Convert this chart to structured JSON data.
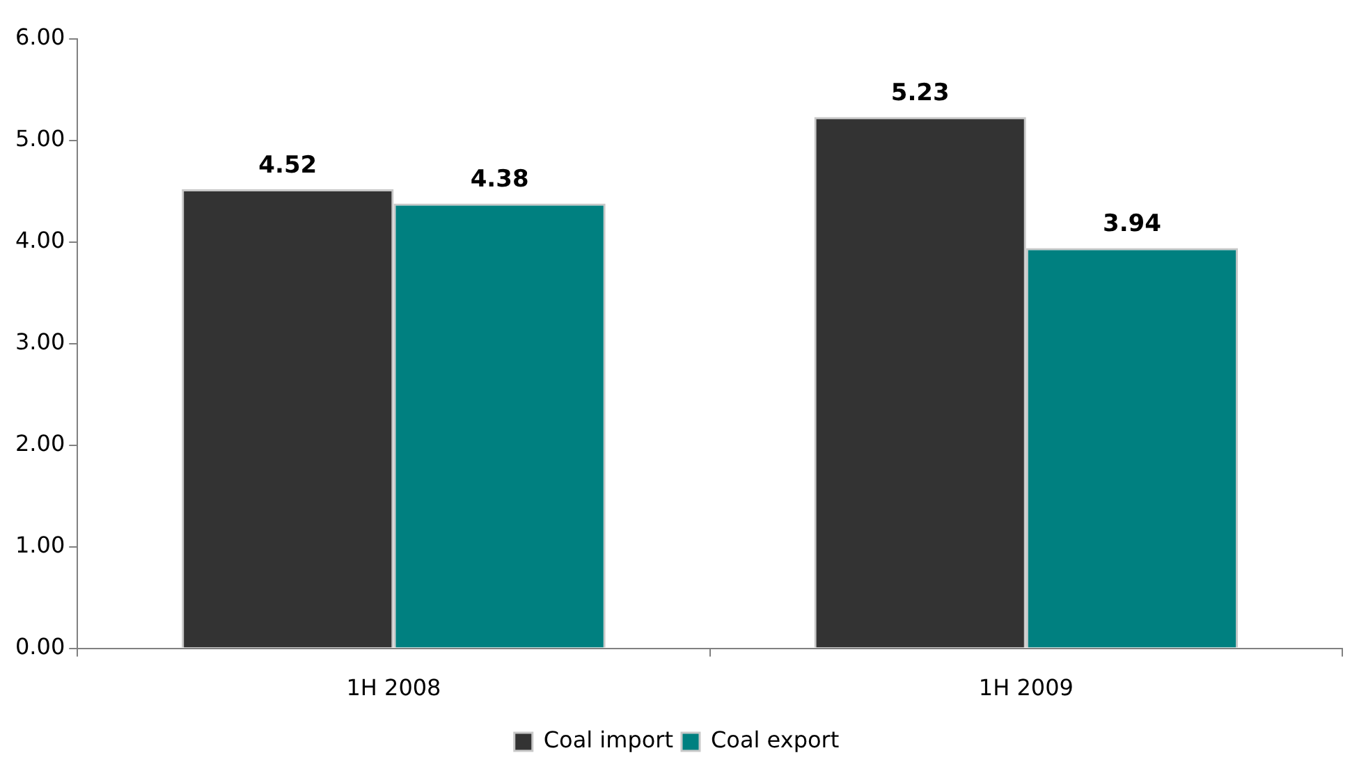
{
  "chart_data": {
    "type": "bar",
    "categories": [
      "1H 2008",
      "1H 2009"
    ],
    "series": [
      {
        "name": "Coal import",
        "color": "#333333",
        "values": [
          4.52,
          5.23
        ]
      },
      {
        "name": "Coal export",
        "color": "#008080",
        "values": [
          4.38,
          3.94
        ]
      }
    ],
    "ylim": [
      0,
      6
    ],
    "yticks": [
      {
        "value": 0,
        "label": "0.00"
      },
      {
        "value": 1,
        "label": "1.00"
      },
      {
        "value": 2,
        "label": "2.00"
      },
      {
        "value": 3,
        "label": "3.00"
      },
      {
        "value": 4,
        "label": "4.00"
      },
      {
        "value": 5,
        "label": "5.00"
      },
      {
        "value": 6,
        "label": "6.00"
      }
    ],
    "grid": false,
    "legend": "bottom",
    "data_labels": true
  }
}
